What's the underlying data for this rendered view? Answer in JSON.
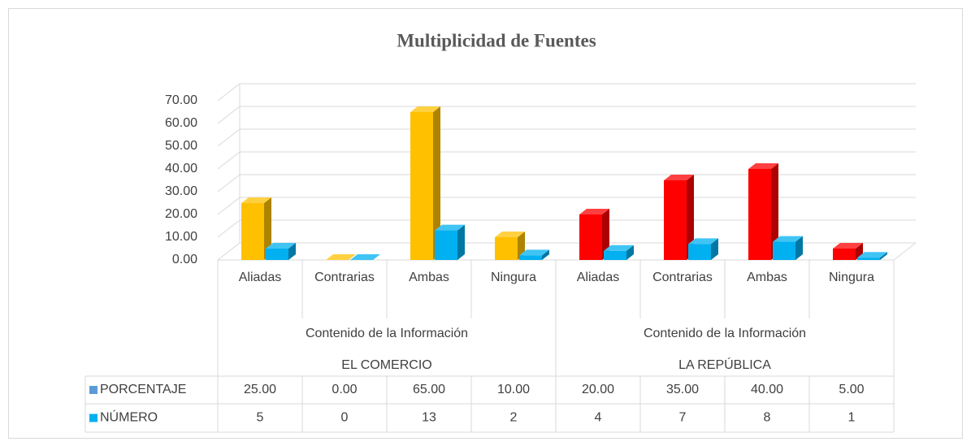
{
  "chart_data": {
    "type": "bar3d",
    "title": "Multiplicidad de Fuentes",
    "categories": [
      "Aliadas",
      "Contrarias",
      "Ambas",
      "Ningura",
      "Aliadas",
      "Contrarias",
      "Ambas",
      "Ningura"
    ],
    "groups": [
      {
        "label": "Contenido de la Información",
        "name": "EL COMERCIO"
      },
      {
        "label": "Contenido de la Información",
        "name": "LA REPÚBLICA"
      }
    ],
    "series": [
      {
        "name": "PORCENTAJE",
        "color": "#5b9bd5",
        "colors": [
          "#ffc000",
          "#ffc000",
          "#ffc000",
          "#ffc000",
          "#ff0000",
          "#ff0000",
          "#ff0000",
          "#ff0000"
        ],
        "values": [
          25,
          0,
          65,
          10,
          20,
          35,
          40,
          5
        ],
        "value_labels": [
          "25.00",
          "0.00",
          "65.00",
          "10.00",
          "20.00",
          "35.00",
          "40.00",
          "5.00"
        ]
      },
      {
        "name": "NÚMERO",
        "color": "#00b0f0",
        "values": [
          5,
          0,
          13,
          2,
          4,
          7,
          8,
          1
        ]
      }
    ],
    "ylim": [
      0,
      70
    ],
    "yticks": [
      {
        "value": 0,
        "label": "0.00"
      },
      {
        "value": 10,
        "label": "10.00"
      },
      {
        "value": 20,
        "label": "20.00"
      },
      {
        "value": 30,
        "label": "30.00"
      },
      {
        "value": 40,
        "label": "40.00"
      },
      {
        "value": 50,
        "label": "50.00"
      },
      {
        "value": 60,
        "label": "60.00"
      },
      {
        "value": 70,
        "label": "70.00"
      }
    ],
    "grid": true,
    "data_table": true
  }
}
